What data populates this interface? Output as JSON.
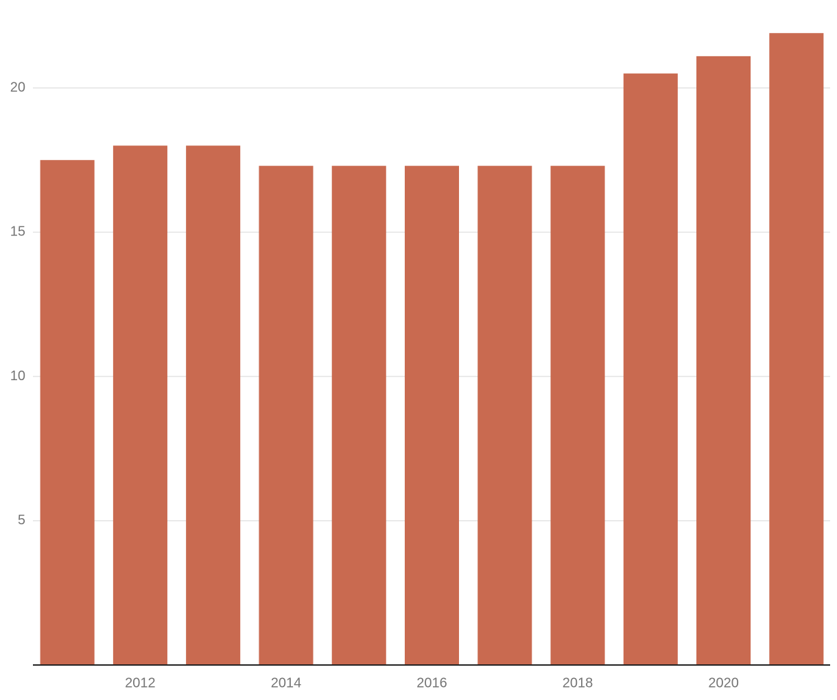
{
  "chart_data": {
    "type": "bar",
    "categories": [
      null,
      "2012",
      null,
      "2014",
      null,
      "2016",
      null,
      "2018",
      null,
      "2020",
      null
    ],
    "values": [
      17.5,
      18,
      18,
      17.3,
      17.3,
      17.3,
      17.3,
      17.3,
      20.5,
      21.1,
      21.9
    ],
    "color": "#c96a50",
    "ylim": [
      0,
      22.5
    ],
    "yticks": [
      5,
      10,
      15,
      20
    ],
    "grid": true
  }
}
